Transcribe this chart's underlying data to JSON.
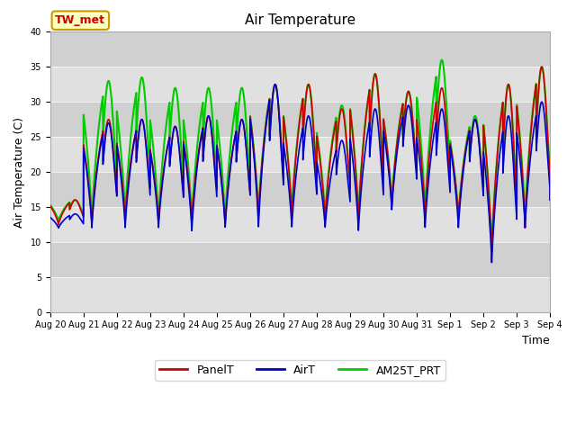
{
  "title": "Air Temperature",
  "ylabel": "Air Temperature (C)",
  "xlabel": "Time",
  "ylim": [
    0,
    40
  ],
  "yticks": [
    0,
    5,
    10,
    15,
    20,
    25,
    30,
    35,
    40
  ],
  "xtick_labels": [
    "Aug 20",
    "Aug 21",
    "Aug 22",
    "Aug 23",
    "Aug 24",
    "Aug 25",
    "Aug 26",
    "Aug 27",
    "Aug 28",
    "Aug 29",
    "Aug 30",
    "Aug 31",
    "Sep 1",
    "Sep 2",
    "Sep 3",
    "Sep 4"
  ],
  "xtick_positions": [
    0,
    24,
    48,
    72,
    96,
    120,
    144,
    168,
    192,
    216,
    240,
    264,
    288,
    312,
    336,
    360
  ],
  "annotation_text": "TW_met",
  "annotation_color": "#cc0000",
  "annotation_bg": "#ffffc0",
  "annotation_border": "#cc9900",
  "line_colors": {
    "PanelT": "#cc0000",
    "AirT": "#0000cc",
    "AM25T_PRT": "#00cc00"
  },
  "line_widths": {
    "PanelT": 1.2,
    "AirT": 1.2,
    "AM25T_PRT": 1.5
  },
  "band_colors": [
    "#e0e0e0",
    "#d0d0d0"
  ],
  "fig_bg": "#ffffff",
  "title_fontsize": 11,
  "axis_label_fontsize": 9,
  "tick_fontsize": 7,
  "legend_fontsize": 9,
  "day_mins_red": [
    12.5,
    12.5,
    13.5,
    13.0,
    13.0,
    12.5,
    13.5,
    13.5,
    13.0,
    13.0,
    15.0,
    13.5,
    13.5,
    8.5,
    12.0,
    16.0
  ],
  "day_maxs_red": [
    16.0,
    27.5,
    27.5,
    26.5,
    28.0,
    27.5,
    32.5,
    32.5,
    29.0,
    34.0,
    31.5,
    32.0,
    27.5,
    32.5,
    35.0,
    17.0
  ],
  "day_mins_blue": [
    12.0,
    12.0,
    12.0,
    12.0,
    11.5,
    12.0,
    12.0,
    12.0,
    12.0,
    11.5,
    14.5,
    12.0,
    12.0,
    7.0,
    12.0,
    16.0
  ],
  "day_maxs_blue": [
    14.0,
    27.0,
    27.5,
    26.5,
    28.0,
    27.5,
    32.5,
    28.0,
    24.5,
    29.0,
    29.5,
    29.0,
    27.5,
    28.0,
    30.0,
    17.0
  ],
  "day_mins_green": [
    13.0,
    13.0,
    13.5,
    13.0,
    13.0,
    13.0,
    14.0,
    14.0,
    13.5,
    13.5,
    15.5,
    14.0,
    13.5,
    9.0,
    13.0,
    16.0
  ],
  "day_maxs_green": [
    16.0,
    33.0,
    33.5,
    32.0,
    32.0,
    32.0,
    32.5,
    32.5,
    29.5,
    34.0,
    31.5,
    36.0,
    28.0,
    32.5,
    35.0,
    16.5
  ],
  "peak_hour": 14,
  "trough_hour": 6,
  "sharpness": 2.5
}
